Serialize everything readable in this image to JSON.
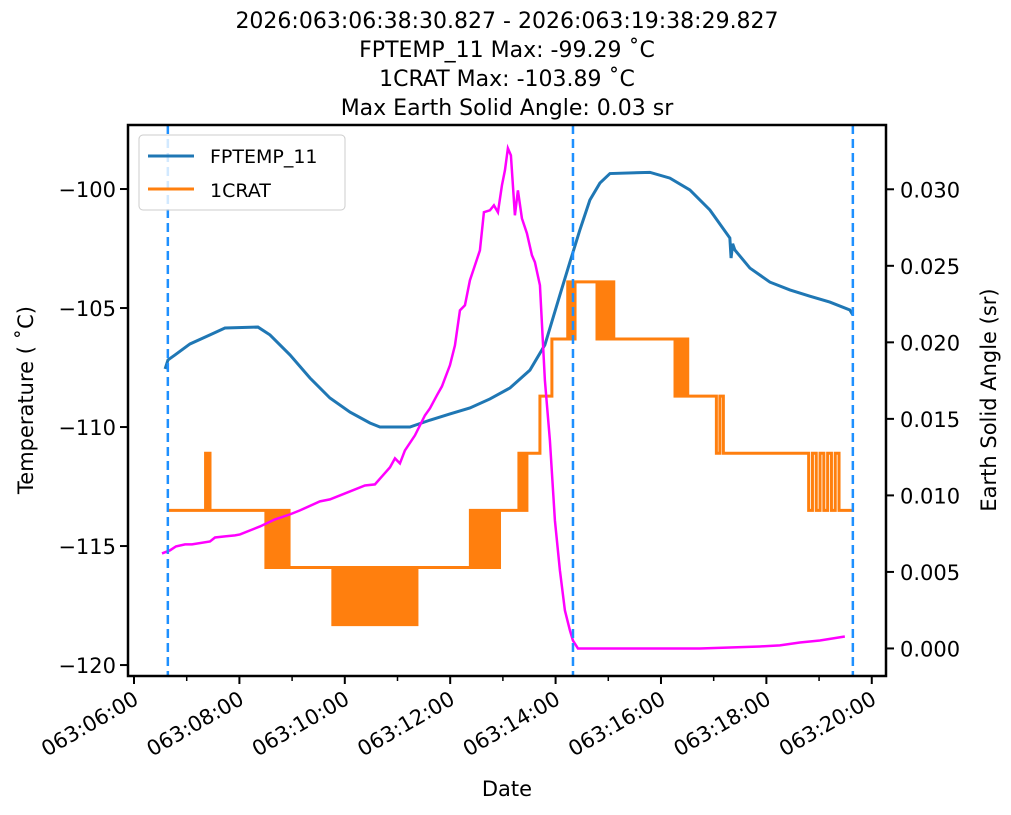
{
  "chart_data": {
    "type": "line",
    "title_lines": [
      "2026:063:06:38:30.827 - 2026:063:19:38:29.827",
      "FPTEMP_11 Max: -99.29 ˚C",
      "1CRAT Max: -103.89 ˚C",
      "Max Earth Solid Angle: 0.03 sr"
    ],
    "xlabel": "Date",
    "ylabel": "Temperature ( ˚C)",
    "y2label": "Earth Solid Angle (sr)",
    "x_unit": "hours of day 063",
    "xlim": [
      5.886,
      20.27
    ],
    "ylim": [
      -120.46,
      -97.31
    ],
    "y2lim": [
      -0.0018,
      0.0342
    ],
    "xticks": [
      {
        "value": 6,
        "label": "063:06:00"
      },
      {
        "value": 8,
        "label": "063:08:00"
      },
      {
        "value": 10,
        "label": "063:10:00"
      },
      {
        "value": 12,
        "label": "063:12:00"
      },
      {
        "value": 14,
        "label": "063:14:00"
      },
      {
        "value": 16,
        "label": "063:16:00"
      },
      {
        "value": 18,
        "label": "063:18:00"
      },
      {
        "value": 20,
        "label": "063:20:00"
      }
    ],
    "xminor": [
      7,
      9,
      11,
      13,
      15,
      17,
      19
    ],
    "yticks": [
      {
        "value": -100,
        "label": "−100"
      },
      {
        "value": -105,
        "label": "−105"
      },
      {
        "value": -110,
        "label": "−110"
      },
      {
        "value": -115,
        "label": "−115"
      },
      {
        "value": -120,
        "label": "−120"
      }
    ],
    "y2ticks": [
      {
        "value": 0.0,
        "label": "0.000"
      },
      {
        "value": 0.005,
        "label": "0.005"
      },
      {
        "value": 0.01,
        "label": "0.010"
      },
      {
        "value": 0.015,
        "label": "0.015"
      },
      {
        "value": 0.02,
        "label": "0.020"
      },
      {
        "value": 0.025,
        "label": "0.025"
      },
      {
        "value": 0.03,
        "label": "0.030"
      }
    ],
    "legend": {
      "placement": "top-left",
      "entries": [
        {
          "name": "FPTEMP_11",
          "color": "#1f77b4"
        },
        {
          "name": "1CRAT",
          "color": "#ff7f0e"
        }
      ]
    },
    "vlines": {
      "color": "#1e90ff",
      "x": [
        6.642,
        14.33,
        19.641
      ]
    },
    "series": [
      {
        "name": "FPTEMP_11",
        "color": "#1f77b4",
        "axis": "left",
        "points": [
          [
            6.59,
            -107.56
          ],
          [
            6.645,
            -107.18
          ],
          [
            6.778,
            -106.97
          ],
          [
            7.062,
            -106.51
          ],
          [
            7.442,
            -106.13
          ],
          [
            7.726,
            -105.84
          ],
          [
            8.352,
            -105.8
          ],
          [
            8.58,
            -106.13
          ],
          [
            8.96,
            -106.97
          ],
          [
            9.339,
            -107.94
          ],
          [
            9.718,
            -108.78
          ],
          [
            10.098,
            -109.37
          ],
          [
            10.477,
            -109.83
          ],
          [
            10.667,
            -110.0
          ],
          [
            11.236,
            -110.0
          ],
          [
            11.616,
            -109.71
          ],
          [
            11.995,
            -109.45
          ],
          [
            12.374,
            -109.2
          ],
          [
            12.754,
            -108.82
          ],
          [
            13.133,
            -108.36
          ],
          [
            13.513,
            -107.61
          ],
          [
            13.797,
            -106.55
          ],
          [
            14.082,
            -104.45
          ],
          [
            14.272,
            -103.07
          ],
          [
            14.461,
            -101.72
          ],
          [
            14.651,
            -100.46
          ],
          [
            14.841,
            -99.75
          ],
          [
            15.031,
            -99.35
          ],
          [
            15.79,
            -99.3
          ],
          [
            16.169,
            -99.54
          ],
          [
            16.548,
            -100.04
          ],
          [
            16.928,
            -100.88
          ],
          [
            17.307,
            -102.06
          ],
          [
            17.33,
            -102.9
          ],
          [
            17.36,
            -102.3
          ],
          [
            17.402,
            -102.56
          ],
          [
            17.687,
            -103.32
          ],
          [
            18.066,
            -103.91
          ],
          [
            18.446,
            -104.24
          ],
          [
            18.825,
            -104.5
          ],
          [
            19.204,
            -104.75
          ],
          [
            19.584,
            -105.08
          ],
          [
            19.641,
            -105.29
          ]
        ]
      },
      {
        "name": "1CRAT",
        "color": "#ff7f0e",
        "axis": "left",
        "levels_note": "step segments [from_h, to_h, levelA, levelB, toggles]",
        "segments": [
          [
            6.642,
            7.33,
            -113.5,
            -113.5,
            0
          ],
          [
            7.33,
            7.442,
            -113.5,
            -111.1,
            4
          ],
          [
            7.442,
            8.466,
            -113.5,
            -113.5,
            0
          ],
          [
            8.466,
            8.979,
            -113.5,
            -115.9,
            14
          ],
          [
            8.979,
            9.718,
            -115.9,
            -115.9,
            0
          ],
          [
            9.718,
            11.369,
            -115.9,
            -118.3,
            30
          ],
          [
            11.369,
            12.337,
            -115.9,
            -115.9,
            0
          ],
          [
            12.337,
            12.982,
            -115.9,
            -113.5,
            14
          ],
          [
            12.982,
            13.285,
            -113.5,
            -113.5,
            0
          ],
          [
            13.285,
            13.475,
            -113.5,
            -111.1,
            10
          ],
          [
            13.475,
            13.703,
            -111.1,
            -111.1,
            0
          ],
          [
            13.703,
            13.93,
            -108.7,
            -108.7,
            0
          ],
          [
            13.93,
            14.196,
            -106.3,
            -106.3,
            0
          ],
          [
            14.196,
            14.404,
            -106.3,
            -103.9,
            6
          ],
          [
            14.404,
            14.746,
            -103.9,
            -103.9,
            0
          ],
          [
            14.746,
            15.144,
            -103.9,
            -106.3,
            10
          ],
          [
            15.144,
            16.226,
            -106.3,
            -106.3,
            0
          ],
          [
            16.226,
            16.548,
            -106.3,
            -108.7,
            8
          ],
          [
            16.548,
            16.985,
            -108.7,
            -108.7,
            0
          ],
          [
            16.985,
            17.25,
            -108.7,
            -111.1,
            4
          ],
          [
            17.25,
            18.73,
            -111.1,
            -111.1,
            0
          ],
          [
            18.73,
            19.451,
            -111.1,
            -113.5,
            10
          ],
          [
            19.451,
            19.641,
            -113.5,
            -113.5,
            0
          ]
        ]
      },
      {
        "name": "Earth Solid Angle",
        "color": "#ff00ff",
        "axis": "right",
        "points": [
          [
            6.531,
            0.00621
          ],
          [
            6.683,
            0.00641
          ],
          [
            6.797,
            0.00667
          ],
          [
            6.968,
            0.0068
          ],
          [
            7.1,
            0.0068
          ],
          [
            7.442,
            0.00699
          ],
          [
            7.537,
            0.00725
          ],
          [
            7.726,
            0.00732
          ],
          [
            7.916,
            0.00739
          ],
          [
            8.011,
            0.00745
          ],
          [
            8.39,
            0.00797
          ],
          [
            8.675,
            0.00843
          ],
          [
            8.96,
            0.00876
          ],
          [
            9.149,
            0.00902
          ],
          [
            9.529,
            0.00961
          ],
          [
            9.718,
            0.00974
          ],
          [
            10.003,
            0.01013
          ],
          [
            10.382,
            0.01065
          ],
          [
            10.572,
            0.01072
          ],
          [
            10.857,
            0.01183
          ],
          [
            10.952,
            0.01242
          ],
          [
            11.046,
            0.01209
          ],
          [
            11.141,
            0.01294
          ],
          [
            11.331,
            0.01392
          ],
          [
            11.521,
            0.01523
          ],
          [
            11.616,
            0.01569
          ],
          [
            11.748,
            0.01654
          ],
          [
            11.843,
            0.01712
          ],
          [
            11.995,
            0.0185
          ],
          [
            12.09,
            0.0198
          ],
          [
            12.185,
            0.02209
          ],
          [
            12.28,
            0.02242
          ],
          [
            12.374,
            0.02405
          ],
          [
            12.469,
            0.02503
          ],
          [
            12.564,
            0.02601
          ],
          [
            12.64,
            0.0285
          ],
          [
            12.754,
            0.02863
          ],
          [
            12.83,
            0.02895
          ],
          [
            12.906,
            0.0285
          ],
          [
            12.982,
            0.03026
          ],
          [
            13.039,
            0.03124
          ],
          [
            13.095,
            0.03268
          ],
          [
            13.152,
            0.03222
          ],
          [
            13.228,
            0.0283
          ],
          [
            13.285,
            0.02993
          ],
          [
            13.361,
            0.0281
          ],
          [
            13.456,
            0.02712
          ],
          [
            13.551,
            0.02569
          ],
          [
            13.608,
            0.02523
          ],
          [
            13.703,
            0.02373
          ],
          [
            13.797,
            0.01752
          ],
          [
            13.892,
            0.01359
          ],
          [
            13.987,
            0.00837
          ],
          [
            14.082,
            0.0051
          ],
          [
            14.177,
            0.00248
          ],
          [
            14.272,
            0.00118
          ],
          [
            14.329,
            0.00052
          ],
          [
            14.424,
            0.0
          ],
          [
            16.738,
            0.0
          ],
          [
            17.876,
            0.00013
          ],
          [
            18.256,
            0.0002
          ],
          [
            18.635,
            0.00039
          ],
          [
            19.015,
            0.00052
          ],
          [
            19.489,
            0.00078
          ]
        ]
      }
    ]
  }
}
